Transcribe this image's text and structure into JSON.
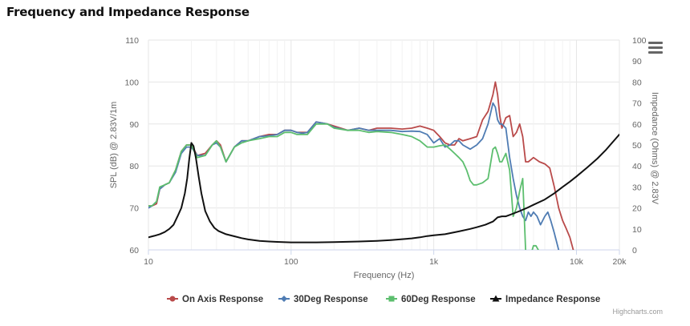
{
  "title": "Frequency and Impedance Response",
  "credits": "Highcharts.com",
  "colors": {
    "on_axis": "#b94a4a",
    "deg30": "#4f7cb3",
    "deg60": "#5cbe6e",
    "impedance": "#111111",
    "grid": "#e6e6e6",
    "axis_text": "#666666"
  },
  "chart_data": {
    "type": "line",
    "xlabel": "Frequency (Hz)",
    "ylabel_left": "SPL (dB) @ 2.83V/1m",
    "ylabel_right": "Impedance (Ohms) @ 2.83V",
    "x_scale": "log",
    "xlim": [
      10,
      20000
    ],
    "ylim_left": [
      60,
      110
    ],
    "ylim_right": [
      0,
      100
    ],
    "x_ticks": [
      {
        "value": 10,
        "label": "10"
      },
      {
        "value": 100,
        "label": "100"
      },
      {
        "value": 1000,
        "label": "1k"
      },
      {
        "value": 10000,
        "label": "10k"
      },
      {
        "value": 20000,
        "label": "20k"
      }
    ],
    "y_ticks_left": [
      60,
      70,
      80,
      90,
      100,
      110
    ],
    "y_ticks_right": [
      0,
      10,
      20,
      30,
      40,
      50,
      60,
      70,
      80,
      90,
      100
    ],
    "legend_position": "bottom",
    "series": [
      {
        "name": "On Axis Response",
        "axis": "left",
        "color_key": "on_axis",
        "marker": "circle",
        "x": [
          10,
          10.6,
          11.4,
          12,
          13,
          14,
          15.5,
          17,
          18.5,
          20,
          22,
          25,
          28,
          30,
          32,
          35,
          40,
          45,
          50,
          60,
          70,
          80,
          90,
          100,
          110,
          120,
          130,
          150,
          180,
          200,
          250,
          300,
          350,
          400,
          500,
          600,
          700,
          800,
          900,
          1000,
          1100,
          1200,
          1300,
          1400,
          1500,
          1600,
          1800,
          2000,
          2200,
          2400,
          2600,
          2700,
          2800,
          2900,
          3000,
          3200,
          3400,
          3600,
          3800,
          4000,
          4200,
          4400,
          4600,
          4800,
          5000,
          5500,
          6000,
          6500,
          7000,
          7500,
          8000,
          8500,
          9000,
          9500,
          10000
        ],
        "y": [
          70.5,
          70.5,
          71,
          74.5,
          75.5,
          76,
          79,
          83.5,
          85,
          85,
          82.5,
          83,
          85,
          86,
          85,
          81,
          84.5,
          86,
          86,
          87,
          87.5,
          87.5,
          88.5,
          88.5,
          88,
          88,
          88,
          90.5,
          90,
          89.5,
          88.5,
          89,
          88.5,
          89,
          89,
          88.8,
          89,
          89.5,
          89,
          88.5,
          87,
          85.5,
          85,
          85,
          86.5,
          86,
          86.5,
          87,
          91,
          93,
          97,
          100,
          97,
          92,
          89,
          91.5,
          92,
          87,
          88,
          90,
          87,
          81,
          81,
          81.5,
          82,
          81,
          80.5,
          79.5,
          75,
          70,
          67,
          65,
          63,
          60,
          58
        ]
      },
      {
        "name": "30Deg Response",
        "axis": "left",
        "color_key": "deg30",
        "marker": "diamond",
        "x": [
          10,
          10.6,
          11.4,
          12,
          13,
          14,
          15.5,
          17,
          18.5,
          20,
          22,
          25,
          28,
          30,
          32,
          35,
          40,
          45,
          50,
          60,
          70,
          80,
          90,
          100,
          110,
          120,
          130,
          150,
          180,
          200,
          250,
          300,
          350,
          400,
          500,
          600,
          700,
          800,
          900,
          1000,
          1100,
          1200,
          1300,
          1400,
          1500,
          1600,
          1800,
          2000,
          2200,
          2400,
          2600,
          2700,
          2800,
          2900,
          3000,
          3200,
          3400,
          3600,
          3800,
          4000,
          4200,
          4400,
          4600,
          4800,
          5000,
          5300,
          5600,
          6000,
          6300,
          6600,
          7000,
          7500
        ],
        "y": [
          70,
          70.5,
          71.5,
          74.5,
          75.5,
          76,
          78.5,
          83,
          84.5,
          84.5,
          82.5,
          82.5,
          85,
          85.5,
          84.5,
          81,
          84.5,
          86,
          86,
          87,
          87.2,
          87.5,
          88.5,
          88.5,
          88,
          87.8,
          88,
          90.5,
          90,
          89.2,
          88.5,
          89,
          88.5,
          88.5,
          88.5,
          88.2,
          88.3,
          88.2,
          87.5,
          85.5,
          86.5,
          84.5,
          85,
          86,
          86,
          85,
          84,
          85,
          86.5,
          90,
          95,
          94,
          91,
          90,
          90,
          89,
          82,
          77,
          73,
          70,
          68,
          67,
          69,
          68,
          69,
          68,
          66,
          68,
          69,
          67,
          64,
          60
        ]
      },
      {
        "name": "60Deg Response",
        "axis": "left",
        "color_key": "deg60",
        "marker": "square",
        "x": [
          10,
          10.6,
          11.4,
          12,
          13,
          14,
          15.5,
          17,
          18.5,
          20,
          22,
          25,
          28,
          30,
          32,
          35,
          40,
          45,
          50,
          60,
          70,
          80,
          90,
          100,
          110,
          120,
          130,
          150,
          180,
          200,
          250,
          300,
          350,
          400,
          500,
          600,
          700,
          800,
          900,
          1000,
          1100,
          1200,
          1300,
          1400,
          1500,
          1600,
          1700,
          1800,
          1900,
          2000,
          2200,
          2400,
          2600,
          2700,
          2800,
          2900,
          3000,
          3200,
          3400,
          3600,
          3800,
          4000,
          4200,
          4400,
          4500,
          4600,
          4700,
          4800,
          5000,
          5200,
          5400,
          5600,
          5800,
          6000
        ],
        "y": [
          70.5,
          70.5,
          71.5,
          75,
          75.5,
          76,
          79,
          83.5,
          85,
          85,
          82,
          82.5,
          85,
          86,
          84.5,
          81,
          84.5,
          85.5,
          86,
          86.5,
          87,
          87,
          88,
          88,
          87.5,
          87.5,
          87.5,
          90,
          90,
          89,
          88.5,
          88.5,
          88,
          88.2,
          88,
          87.5,
          87,
          86,
          84.5,
          84.5,
          84.8,
          85,
          84,
          83,
          82,
          81,
          79,
          76.5,
          75.5,
          75.5,
          76,
          77,
          84,
          84.5,
          83,
          81,
          81,
          83,
          79,
          68,
          70,
          74,
          77,
          60,
          58,
          57,
          58,
          59,
          61,
          61,
          60,
          58,
          57,
          56
        ]
      },
      {
        "name": "Impedance Response",
        "axis": "right",
        "color_key": "impedance",
        "marker": "triangle",
        "x": [
          10,
          11,
          12,
          13,
          14,
          15,
          16,
          17,
          18,
          18.7,
          19.3,
          20,
          20.7,
          21.5,
          22.5,
          23.5,
          25,
          27,
          29,
          31,
          35,
          40,
          45,
          50,
          60,
          70,
          80,
          100,
          150,
          200,
          300,
          400,
          500,
          600,
          700,
          800,
          900,
          1000,
          1200,
          1500,
          1800,
          2000,
          2300,
          2600,
          2800,
          3000,
          3200,
          3500,
          4000,
          4500,
          5000,
          6000,
          7000,
          8000,
          9000,
          10000,
          12000,
          14000,
          16000,
          18000,
          20000
        ],
        "y": [
          6,
          6.7,
          7.5,
          8.5,
          10,
          12,
          16,
          20,
          27,
          34,
          43,
          51,
          49.5,
          44,
          35,
          27,
          18.5,
          13.5,
          10.5,
          9,
          7.5,
          6.5,
          5.6,
          5,
          4.3,
          4,
          3.8,
          3.6,
          3.6,
          3.7,
          4,
          4.3,
          4.7,
          5.1,
          5.5,
          6,
          6.6,
          7,
          7.5,
          8.8,
          10,
          10.8,
          12,
          13.5,
          15.5,
          16,
          16,
          17,
          18.5,
          20,
          21.5,
          24,
          27,
          30,
          32.5,
          35,
          39.5,
          43.5,
          47.5,
          51.5,
          55
        ]
      }
    ]
  }
}
